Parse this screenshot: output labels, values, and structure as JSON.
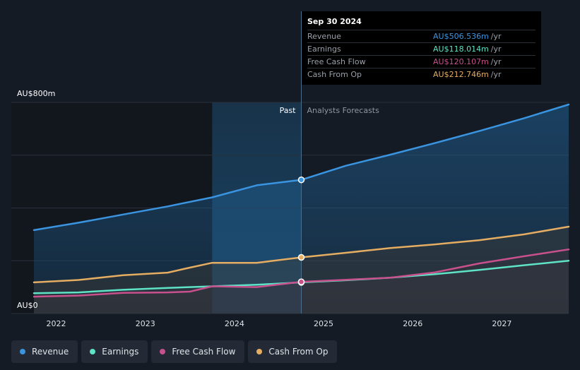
{
  "chart_data": {
    "type": "area",
    "y_top_label": "AU$800m",
    "y_bottom_label": "AU$0",
    "ylim": [
      0,
      800
    ],
    "xlim": [
      2021.75,
      2027.75
    ],
    "x_ticks": [
      "2022",
      "2023",
      "2024",
      "2025",
      "2026",
      "2027"
    ],
    "x_tick_values": [
      2022,
      2023,
      2024,
      2025,
      2026,
      2027
    ],
    "past_label": "Past",
    "forecast_label": "Analysts Forecasts",
    "past_region_start": 2023.75,
    "divider_x": 2024.75,
    "grid": true,
    "legend_position": "bottom-left",
    "series": [
      {
        "name": "Revenue",
        "color": "#3a94e0",
        "points": [
          [
            2021.75,
            316
          ],
          [
            2022.25,
            344
          ],
          [
            2022.75,
            375
          ],
          [
            2023.25,
            406
          ],
          [
            2023.75,
            440
          ],
          [
            2024.25,
            486
          ],
          [
            2024.75,
            506.5
          ],
          [
            2025.25,
            560
          ],
          [
            2025.75,
            602
          ],
          [
            2026.25,
            646
          ],
          [
            2026.75,
            692
          ],
          [
            2027.25,
            740
          ],
          [
            2027.75,
            792
          ]
        ]
      },
      {
        "name": "Earnings",
        "color": "#5ee3c6",
        "points": [
          [
            2021.75,
            77
          ],
          [
            2022.25,
            80
          ],
          [
            2022.75,
            90
          ],
          [
            2023.25,
            97
          ],
          [
            2023.75,
            103
          ],
          [
            2024.25,
            109
          ],
          [
            2024.75,
            118
          ],
          [
            2025.25,
            126
          ],
          [
            2025.75,
            136
          ],
          [
            2026.25,
            149
          ],
          [
            2026.75,
            165
          ],
          [
            2027.25,
            183
          ],
          [
            2027.75,
            200
          ]
        ]
      },
      {
        "name": "Free Cash Flow",
        "color": "#c8508c",
        "points": [
          [
            2021.75,
            64
          ],
          [
            2022.25,
            68
          ],
          [
            2022.75,
            78
          ],
          [
            2023.25,
            80
          ],
          [
            2023.5,
            83
          ],
          [
            2023.75,
            103
          ],
          [
            2024.25,
            100
          ],
          [
            2024.75,
            120.1
          ],
          [
            2025.25,
            128
          ],
          [
            2025.75,
            136
          ],
          [
            2026.25,
            156
          ],
          [
            2026.75,
            190
          ],
          [
            2027.25,
            217
          ],
          [
            2027.75,
            243
          ]
        ]
      },
      {
        "name": "Cash From Op",
        "color": "#e5ad62",
        "points": [
          [
            2021.75,
            118
          ],
          [
            2022.25,
            127
          ],
          [
            2022.75,
            145
          ],
          [
            2023.25,
            155
          ],
          [
            2023.5,
            174
          ],
          [
            2023.75,
            192
          ],
          [
            2024.25,
            192
          ],
          [
            2024.75,
            212.7
          ],
          [
            2025.25,
            230
          ],
          [
            2025.75,
            248
          ],
          [
            2026.25,
            262
          ],
          [
            2026.75,
            278
          ],
          [
            2027.25,
            300
          ],
          [
            2027.75,
            329
          ]
        ]
      }
    ]
  },
  "tooltip": {
    "date": "Sep 30 2024",
    "rows": [
      {
        "label": "Revenue",
        "value": "AU$506.536m",
        "unit": "/yr",
        "color": "#3a94e0"
      },
      {
        "label": "Earnings",
        "value": "AU$118.014m",
        "unit": "/yr",
        "color": "#5ee3c6"
      },
      {
        "label": "Free Cash Flow",
        "value": "AU$120.107m",
        "unit": "/yr",
        "color": "#c8508c"
      },
      {
        "label": "Cash From Op",
        "value": "AU$212.746m",
        "unit": "/yr",
        "color": "#e5ad62"
      }
    ]
  },
  "legend": [
    {
      "label": "Revenue",
      "color": "#3a94e0"
    },
    {
      "label": "Earnings",
      "color": "#5ee3c6"
    },
    {
      "label": "Free Cash Flow",
      "color": "#c8508c"
    },
    {
      "label": "Cash From Op",
      "color": "#e5ad62"
    }
  ]
}
